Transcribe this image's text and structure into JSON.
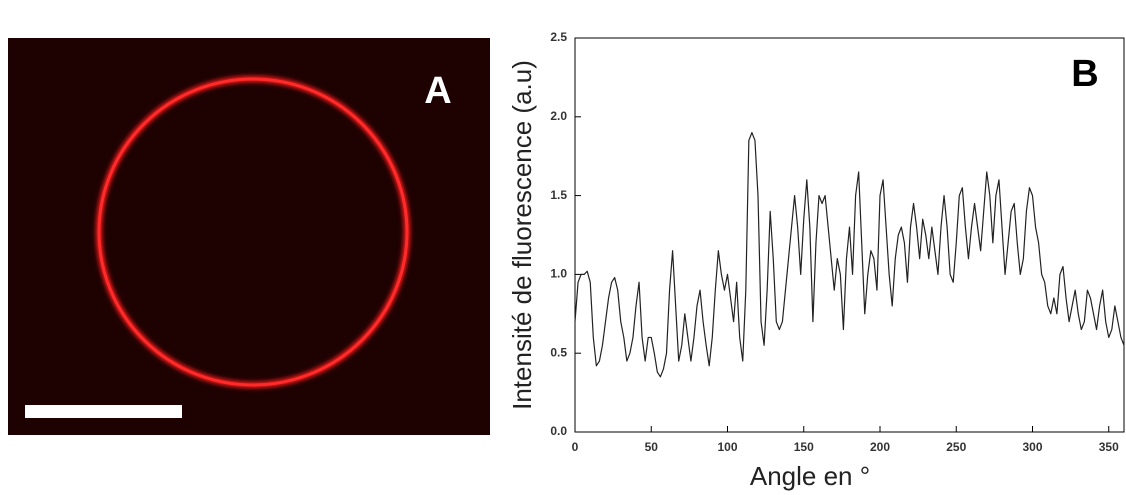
{
  "image": {
    "label": "A"
  },
  "chart_data": {
    "type": "line",
    "panel_label": "B",
    "xlabel": "Angle en °",
    "ylabel": "Intensité de fluorescence (a.u)",
    "xlim": [
      0,
      360
    ],
    "xticks": [
      0,
      50,
      100,
      150,
      200,
      250,
      300,
      350
    ],
    "ylim": [
      0,
      2.5
    ],
    "yticks": [
      {
        "value": 0,
        "label": "0.0"
      },
      0.5,
      {
        "value": 1,
        "label": "1.0"
      },
      1.5,
      {
        "value": 2,
        "label": "2.0"
      },
      2.5
    ],
    "color": "#222222",
    "x": [
      0,
      2,
      4,
      6,
      8,
      10,
      12,
      14,
      16,
      18,
      20,
      22,
      24,
      26,
      28,
      30,
      32,
      34,
      36,
      38,
      40,
      42,
      44,
      46,
      48,
      50,
      52,
      54,
      56,
      58,
      60,
      62,
      64,
      66,
      68,
      70,
      72,
      74,
      76,
      78,
      80,
      82,
      84,
      86,
      88,
      90,
      92,
      94,
      96,
      98,
      100,
      102,
      104,
      106,
      108,
      110,
      112,
      114,
      116,
      118,
      120,
      122,
      124,
      126,
      128,
      130,
      132,
      134,
      136,
      138,
      140,
      142,
      144,
      146,
      148,
      150,
      152,
      154,
      156,
      158,
      160,
      162,
      164,
      166,
      168,
      170,
      172,
      174,
      176,
      178,
      180,
      182,
      184,
      186,
      188,
      190,
      192,
      194,
      196,
      198,
      200,
      202,
      204,
      206,
      208,
      210,
      212,
      214,
      216,
      218,
      220,
      222,
      224,
      226,
      228,
      230,
      232,
      234,
      236,
      238,
      240,
      242,
      244,
      246,
      248,
      250,
      252,
      254,
      256,
      258,
      260,
      262,
      264,
      266,
      268,
      270,
      272,
      274,
      276,
      278,
      280,
      282,
      284,
      286,
      288,
      290,
      292,
      294,
      296,
      298,
      300,
      302,
      304,
      306,
      308,
      310,
      312,
      314,
      316,
      318,
      320,
      322,
      324,
      326,
      328,
      330,
      332,
      334,
      336,
      338,
      340,
      342,
      344,
      346,
      348,
      350,
      352,
      354,
      356,
      358,
      360
    ],
    "values": [
      0.7,
      0.95,
      1.0,
      1.0,
      1.02,
      0.95,
      0.6,
      0.42,
      0.45,
      0.55,
      0.7,
      0.85,
      0.95,
      0.98,
      0.9,
      0.7,
      0.6,
      0.45,
      0.5,
      0.6,
      0.8,
      0.95,
      0.6,
      0.45,
      0.6,
      0.6,
      0.5,
      0.38,
      0.35,
      0.4,
      0.5,
      0.9,
      1.15,
      0.8,
      0.45,
      0.55,
      0.75,
      0.6,
      0.45,
      0.6,
      0.8,
      0.9,
      0.7,
      0.55,
      0.42,
      0.6,
      0.9,
      1.15,
      1.0,
      0.9,
      1.0,
      0.85,
      0.7,
      0.95,
      0.6,
      0.45,
      0.9,
      1.85,
      1.9,
      1.85,
      1.5,
      0.7,
      0.55,
      0.9,
      1.4,
      1.1,
      0.7,
      0.65,
      0.7,
      0.9,
      1.1,
      1.3,
      1.5,
      1.3,
      1.0,
      1.35,
      1.6,
      1.3,
      0.7,
      1.2,
      1.5,
      1.45,
      1.5,
      1.3,
      1.1,
      0.9,
      1.1,
      1.0,
      0.65,
      1.1,
      1.3,
      1.0,
      1.5,
      1.65,
      1.2,
      0.75,
      1.0,
      1.15,
      1.1,
      0.9,
      1.5,
      1.6,
      1.3,
      1.0,
      0.8,
      1.1,
      1.25,
      1.3,
      1.2,
      0.95,
      1.3,
      1.45,
      1.3,
      1.1,
      1.35,
      1.25,
      1.1,
      1.3,
      1.15,
      1.0,
      1.3,
      1.5,
      1.3,
      1.0,
      0.95,
      1.2,
      1.5,
      1.55,
      1.3,
      1.1,
      1.3,
      1.45,
      1.3,
      1.15,
      1.4,
      1.65,
      1.5,
      1.2,
      1.5,
      1.6,
      1.3,
      1.0,
      1.2,
      1.4,
      1.45,
      1.2,
      1.0,
      1.1,
      1.4,
      1.55,
      1.5,
      1.3,
      1.2,
      1.0,
      0.95,
      0.8,
      0.75,
      0.85,
      0.75,
      1.0,
      1.05,
      0.85,
      0.7,
      0.8,
      0.9,
      0.75,
      0.65,
      0.7,
      0.9,
      0.85,
      0.75,
      0.65,
      0.8,
      0.9,
      0.7,
      0.6,
      0.65,
      0.8,
      0.7,
      0.6,
      0.55
    ]
  }
}
